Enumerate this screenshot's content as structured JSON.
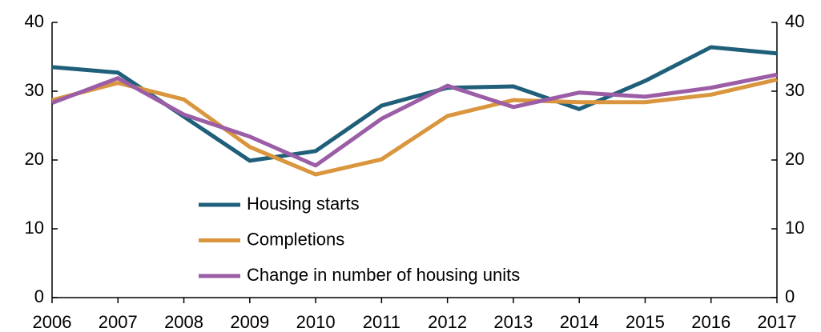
{
  "chart_data": {
    "type": "line",
    "x": [
      2006,
      2007,
      2008,
      2009,
      2010,
      2011,
      2012,
      2013,
      2014,
      2015,
      2016,
      2017
    ],
    "series": [
      {
        "name": "Housing starts",
        "color": "#1f5f7a",
        "values": [
          33.5,
          32.7,
          26.3,
          19.9,
          21.3,
          27.9,
          30.5,
          30.7,
          27.4,
          31.5,
          36.4,
          35.5
        ]
      },
      {
        "name": "Completions",
        "color": "#d9963e",
        "values": [
          28.7,
          31.2,
          28.8,
          21.9,
          17.9,
          20.1,
          26.4,
          28.7,
          28.4,
          28.4,
          29.5,
          31.7
        ]
      },
      {
        "name": "Change in number of housing units",
        "color": "#9b5ea6",
        "values": [
          28.3,
          31.9,
          26.6,
          23.4,
          19.2,
          26.0,
          30.8,
          27.7,
          29.8,
          29.2,
          30.5,
          32.4
        ]
      }
    ],
    "xlim": [
      2006,
      2017
    ],
    "xticks": [
      2006,
      2007,
      2008,
      2009,
      2010,
      2011,
      2012,
      2013,
      2014,
      2015,
      2016,
      2017
    ],
    "ylim": [
      0,
      40
    ],
    "yticks": [
      0,
      10,
      20,
      30,
      40
    ],
    "y2lim": [
      0,
      40
    ],
    "y2ticks": [
      0,
      10,
      20,
      30,
      40
    ],
    "legend": "lower center"
  }
}
